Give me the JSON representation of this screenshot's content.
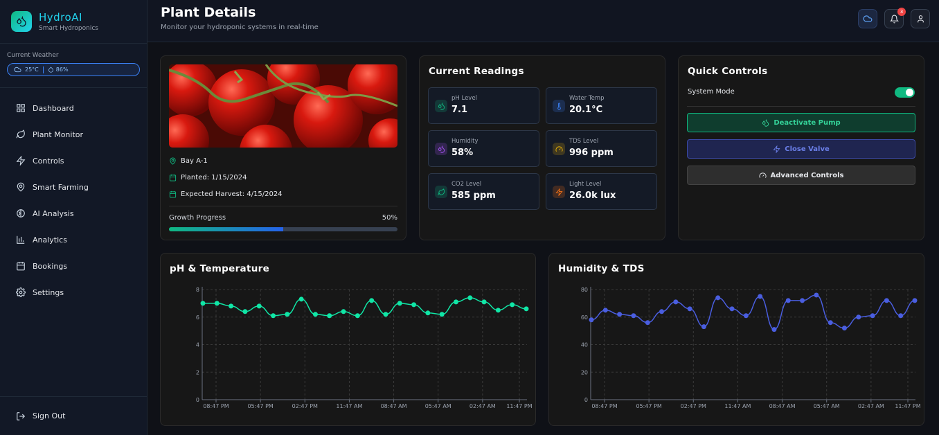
{
  "brand": {
    "name": "HydroAI",
    "subtitle": "Smart Hydroponics"
  },
  "weather": {
    "title": "Current Weather",
    "temp": "25°C",
    "humidity": "86%"
  },
  "nav": [
    {
      "label": "Dashboard",
      "icon": "grid-icon"
    },
    {
      "label": "Plant Monitor",
      "icon": "leaf-icon"
    },
    {
      "label": "Controls",
      "icon": "bolt-icon"
    },
    {
      "label": "Smart Farming",
      "icon": "map-pin-icon"
    },
    {
      "label": "AI Analysis",
      "icon": "brain-icon"
    },
    {
      "label": "Analytics",
      "icon": "bar-chart-icon"
    },
    {
      "label": "Bookings",
      "icon": "calendar-icon"
    },
    {
      "label": "Settings",
      "icon": "gear-icon"
    }
  ],
  "signout": "Sign Out",
  "header": {
    "title": "Plant Details",
    "subtitle": "Monitor your hydroponic systems in real-time",
    "notifications": "3"
  },
  "plant": {
    "location": "Bay A-1",
    "planted": "Planted: 1/15/2024",
    "harvest": "Expected Harvest: 4/15/2024",
    "progress_label": "Growth Progress",
    "progress_text": "50%",
    "progress": 50
  },
  "readings": {
    "title": "Current Readings",
    "items": [
      {
        "label": "pH Level",
        "value": "7.1",
        "icon": "drop-icon",
        "color": "#10b981"
      },
      {
        "label": "Water Temp",
        "value": "20.1°C",
        "icon": "thermometer-icon",
        "color": "#3b82f6"
      },
      {
        "label": "Humidity",
        "value": "58%",
        "icon": "drop-icon",
        "color": "#a855f7"
      },
      {
        "label": "TDS Level",
        "value": "996 ppm",
        "icon": "gauge-icon",
        "color": "#eab308"
      },
      {
        "label": "CO2 Level",
        "value": "585 ppm",
        "icon": "leaf-icon",
        "color": "#10b981"
      },
      {
        "label": "Light Level",
        "value": "26.0k lux",
        "icon": "bolt-icon",
        "color": "#f97316"
      }
    ]
  },
  "controls": {
    "title": "Quick Controls",
    "mode_label": "System Mode",
    "pump": "Deactivate Pump",
    "valve": "Close Valve",
    "advanced": "Advanced Controls"
  },
  "chart_data": [
    {
      "type": "line",
      "title": "pH & Temperature",
      "x_ticks": [
        "08:47 PM",
        "05:47 PM",
        "02:47 PM",
        "11:47 AM",
        "08:47 AM",
        "05:47 AM",
        "02:47 AM",
        "11:47 PM"
      ],
      "ylim": [
        0,
        8
      ],
      "y_ticks": [
        0,
        2,
        4,
        6,
        8
      ],
      "color": "#10e6a6",
      "series": [
        {
          "values": [
            7.0,
            7.0,
            6.8,
            6.4,
            6.8,
            6.1,
            6.2,
            7.3,
            6.2,
            6.1,
            6.4,
            6.1,
            7.2,
            6.2,
            7.0,
            6.9,
            6.3,
            6.2,
            7.1,
            7.4,
            7.1,
            6.5,
            6.9,
            6.6
          ]
        }
      ]
    },
    {
      "type": "line",
      "title": "Humidity & TDS",
      "x_ticks": [
        "08:47 PM",
        "05:47 PM",
        "02:47 PM",
        "11:47 AM",
        "08:47 AM",
        "05:47 AM",
        "02:47 AM",
        "11:47 PM"
      ],
      "ylim": [
        0,
        80
      ],
      "y_ticks": [
        0,
        20,
        40,
        60,
        80
      ],
      "color": "#4a5ee0",
      "series": [
        {
          "values": [
            58,
            65,
            62,
            61,
            56,
            64,
            71,
            66,
            53,
            74,
            66,
            61,
            75,
            51,
            72,
            72,
            76,
            56,
            52,
            60,
            61,
            72,
            61,
            72
          ]
        }
      ]
    }
  ]
}
